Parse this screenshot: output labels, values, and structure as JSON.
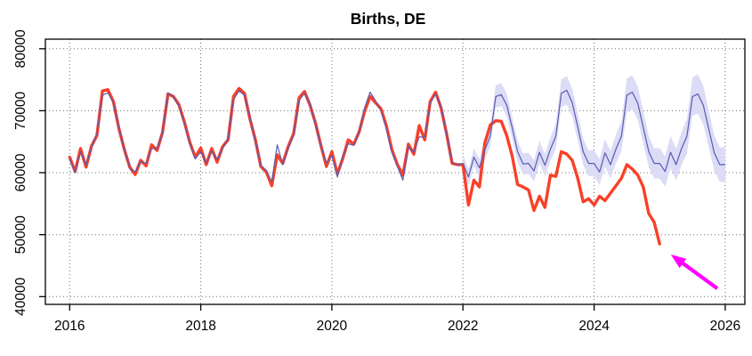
{
  "title": "Births, DE",
  "colors": {
    "actual_line": "#F94028",
    "model_line": "#5A5AB2",
    "band_fill": "#DCDCF6",
    "arrow": "#FF00FF",
    "grid": "#6E6E6E",
    "axis": "#000000",
    "background": "#FFFFFF"
  },
  "chart_data": {
    "type": "line",
    "title": "Births, DE",
    "xlabel": "",
    "ylabel": "",
    "xlim": [
      2015.63,
      2026.3
    ],
    "ylim": [
      38750,
      81550
    ],
    "x_ticks": [
      2016,
      2018,
      2020,
      2022,
      2024,
      2026
    ],
    "x_tick_labels": [
      "2016",
      "2018",
      "2020",
      "2022",
      "2024",
      "2026"
    ],
    "y_ticks": [
      40000,
      50000,
      60000,
      70000,
      80000
    ],
    "y_tick_labels": [
      "40000",
      "50000",
      "60000",
      "70000",
      "80000"
    ],
    "grid": true,
    "legend_position": "none",
    "series": [
      {
        "name": "actual_births",
        "role": "actual",
        "start": 2016,
        "frequency": 12,
        "values": [
          62500,
          60200,
          63900,
          60900,
          64300,
          66000,
          73200,
          73400,
          71500,
          67200,
          63800,
          60900,
          59700,
          62000,
          61100,
          64500,
          63600,
          66500,
          72700,
          72300,
          71000,
          68200,
          64900,
          62500,
          64000,
          61300,
          63900,
          61700,
          64200,
          65300,
          72300,
          73600,
          72800,
          68700,
          65300,
          61000,
          60100,
          57900,
          62900,
          61500,
          64200,
          66300,
          72100,
          73100,
          70900,
          68000,
          64400,
          61000,
          63400,
          59800,
          62300,
          65300,
          64600,
          66600,
          69900,
          72300,
          71300,
          70300,
          67500,
          63700,
          61300,
          59600,
          64600,
          63000,
          67600,
          65300,
          71500,
          73000,
          70400,
          66300,
          61500,
          61300,
          61300,
          54800,
          58800,
          57700,
          64800,
          67700,
          68400,
          68300,
          66000,
          62700,
          58100,
          57700,
          57200,
          53900,
          56200,
          54400,
          59600,
          59400,
          63400,
          63000,
          62000,
          59100,
          55300,
          55800,
          54800,
          56200,
          55500,
          56700,
          57900,
          59100,
          61300,
          60600,
          59600,
          57700,
          53400,
          52000,
          48500
        ]
      },
      {
        "name": "model_fit",
        "role": "fit",
        "start": 2016,
        "frequency": 12,
        "values": [
          62300,
          60000,
          63400,
          61200,
          64000,
          66300,
          72500,
          72900,
          71300,
          67400,
          63900,
          60700,
          60100,
          61800,
          61500,
          63900,
          63900,
          66400,
          72900,
          72200,
          70800,
          68000,
          64700,
          62200,
          63400,
          61600,
          63500,
          62100,
          63900,
          65600,
          71800,
          73200,
          72500,
          69000,
          65000,
          61200,
          60400,
          58500,
          64500,
          61300,
          64000,
          66000,
          71700,
          72800,
          71100,
          67800,
          64300,
          61500,
          62800,
          59300,
          62700,
          64700,
          64400,
          66500,
          70500,
          73000,
          71600,
          69900,
          67000,
          63300,
          61000,
          58800,
          64200,
          63300,
          65800,
          65700,
          71200,
          72700,
          70700,
          66400,
          61800,
          61200
        ]
      },
      {
        "name": "forecast",
        "role": "forecast",
        "start": 2022,
        "frequency": 12,
        "ci_pct_start": 0.022,
        "ci_pct_end": 0.046,
        "values": [
          61500,
          59300,
          62500,
          60800,
          63700,
          65900,
          72300,
          72600,
          70900,
          67300,
          63400,
          61400,
          61500,
          60300,
          63300,
          61200,
          63800,
          65900,
          72800,
          73300,
          71300,
          67400,
          63400,
          61500,
          61500,
          60100,
          63200,
          61300,
          63800,
          65900,
          72500,
          73000,
          71200,
          67300,
          63400,
          61500,
          61500,
          60200,
          63300,
          61300,
          63900,
          65900,
          72300,
          72700,
          70900,
          67000,
          63200,
          61300,
          61300
        ]
      }
    ],
    "annotation_arrow": {
      "tail_x": 2025.88,
      "tail_y": 41300,
      "tip_x": 2025.17,
      "tip_y": 46800
    }
  }
}
